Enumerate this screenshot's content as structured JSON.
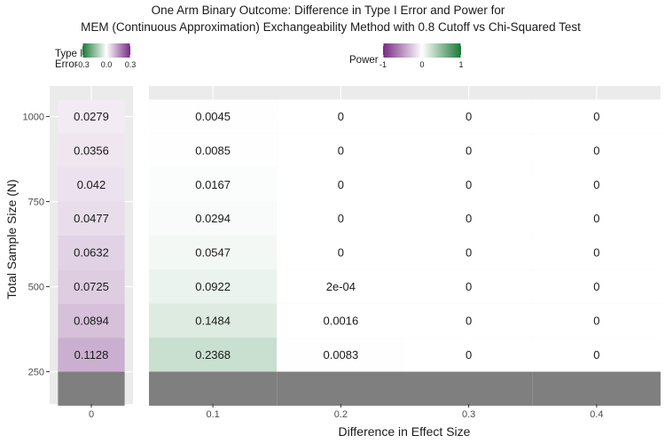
{
  "chart_data": {
    "type": "heatmap",
    "title_lines": [
      "One Arm Binary Outcome: Difference in Type I Error and Power for",
      "MEM (Continuous Approximation) Exchangeability Method with 0.8 Cutoff vs Chi-Squared Test"
    ],
    "xlabel": "Difference in Effect Size",
    "ylabel": "Total Sample Size (N)",
    "ylim": [
      155,
      1090
    ],
    "y_ticks": [
      "250",
      "500",
      "750",
      "1000"
    ],
    "y_tick_values": [
      250,
      500,
      750,
      1000
    ],
    "rows_n": [
      1000,
      900,
      800,
      700,
      600,
      500,
      400,
      300,
      200
    ],
    "panels": [
      {
        "name": "type1",
        "x_ticks": [
          "0"
        ],
        "x_tick_values": [
          0
        ],
        "columns": [
          {
            "x": 0,
            "values": [
              0.0279,
              0.0356,
              0.042,
              0.0477,
              0.0632,
              0.0725,
              0.0894,
              0.1128,
              null
            ],
            "labels": [
              "0.0279",
              "0.0356",
              "0.042",
              "0.0477",
              "0.0632",
              "0.0725",
              "0.0894",
              "0.1128",
              ""
            ]
          }
        ]
      },
      {
        "name": "power",
        "x_ticks": [
          "0.1",
          "0.2",
          "0.3",
          "0.4"
        ],
        "x_tick_values": [
          0.1,
          0.2,
          0.3,
          0.4
        ],
        "columns": [
          {
            "x": 0.1,
            "values": [
              0.0045,
              0.0085,
              0.0167,
              0.0294,
              0.0547,
              0.0922,
              0.1484,
              0.2368,
              null
            ],
            "labels": [
              "0.0045",
              "0.0085",
              "0.0167",
              "0.0294",
              "0.0547",
              "0.0922",
              "0.1484",
              "0.2368",
              ""
            ]
          },
          {
            "x": 0.2,
            "values": [
              0,
              0,
              0,
              0,
              0,
              0.0002,
              0.0016,
              0.0083,
              null
            ],
            "labels": [
              "0",
              "0",
              "0",
              "0",
              "0",
              "2e-04",
              "0.0016",
              "0.0083",
              ""
            ]
          },
          {
            "x": 0.3,
            "values": [
              0,
              0,
              0,
              0,
              0,
              0,
              0,
              0,
              null
            ],
            "labels": [
              "0",
              "0",
              "0",
              "0",
              "0",
              "0",
              "0",
              "0",
              ""
            ]
          },
          {
            "x": 0.4,
            "values": [
              0,
              0,
              0,
              0,
              0,
              0,
              0,
              0,
              null
            ],
            "labels": [
              "0",
              "0",
              "0",
              "0",
              "0",
              "0",
              "0",
              "0",
              ""
            ]
          }
        ]
      }
    ],
    "legends": [
      {
        "title_lines": [
          "Type I",
          "Error"
        ],
        "ticks": [
          "-0.3",
          "0.0",
          "0.3"
        ],
        "range": [
          -0.3,
          0.3
        ],
        "colors": {
          "low": "#1b7837",
          "mid": "#ffffff",
          "high": "#762a83"
        }
      },
      {
        "title_lines": [
          "Power"
        ],
        "ticks": [
          "-1",
          "0",
          "1"
        ],
        "range": [
          -1,
          1
        ],
        "colors": {
          "low": "#762a83",
          "mid": "#ffffff",
          "high": "#1b7837"
        }
      }
    ],
    "colors": {
      "panel_background": "#ebebeb",
      "grid": "#ffffff",
      "na_fill": "#7f7f7f"
    },
    "legend_position": "top",
    "grid": true
  }
}
